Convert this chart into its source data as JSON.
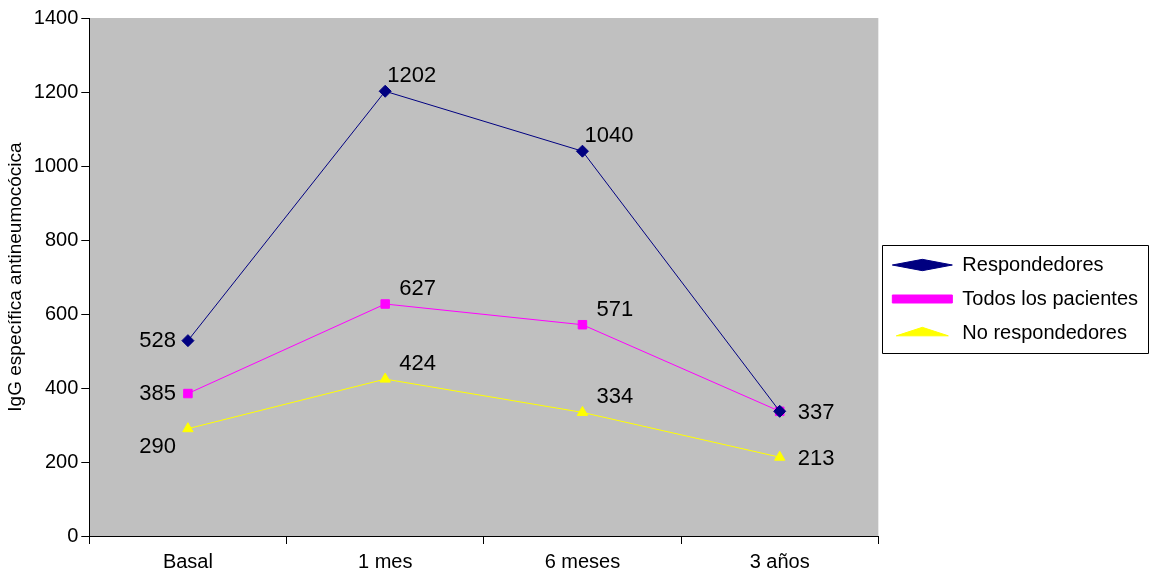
{
  "chart_data": {
    "type": "line",
    "ylabel": "IgG específica antineumocócica",
    "categories": [
      "Basal",
      "1 mes",
      "6 meses",
      "3 años"
    ],
    "series": [
      {
        "name": "Respondedores",
        "color": "#000080",
        "marker": "diamond",
        "values": [
          528,
          1202,
          1040,
          337
        ],
        "value_labels": [
          "528",
          "1202",
          "1040",
          null
        ]
      },
      {
        "name": "Todos los pacientes",
        "color": "#ff00ff",
        "marker": "square",
        "values": [
          385,
          627,
          571,
          337
        ]
      },
      {
        "name": "No respondedores",
        "color": "#ffff00",
        "marker": "triangle",
        "values": [
          290,
          424,
          334,
          213
        ]
      }
    ],
    "ylim": [
      0,
      1400
    ],
    "yticks": [
      0,
      200,
      400,
      600,
      800,
      1000,
      1200,
      1400
    ],
    "grid": false,
    "legend": "right",
    "data_labels": true
  }
}
